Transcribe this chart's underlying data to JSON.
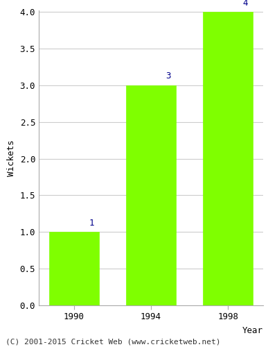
{
  "years": [
    "1990",
    "1994",
    "1998"
  ],
  "values": [
    1,
    3,
    4
  ],
  "bar_color": "#7FFF00",
  "bar_edge_color": "#7FFF00",
  "ylabel": "Wickets",
  "xlabel": "Year",
  "ylim": [
    0,
    4.0
  ],
  "yticks": [
    0.0,
    0.5,
    1.0,
    1.5,
    2.0,
    2.5,
    3.0,
    3.5,
    4.0
  ],
  "annotation_color": "#00008B",
  "annotation_fontsize": 9,
  "axis_label_fontsize": 9,
  "tick_fontsize": 9,
  "footer_text": "(C) 2001-2015 Cricket Web (www.cricketweb.net)",
  "footer_fontsize": 8,
  "background_color": "#ffffff",
  "grid_color": "#cccccc"
}
